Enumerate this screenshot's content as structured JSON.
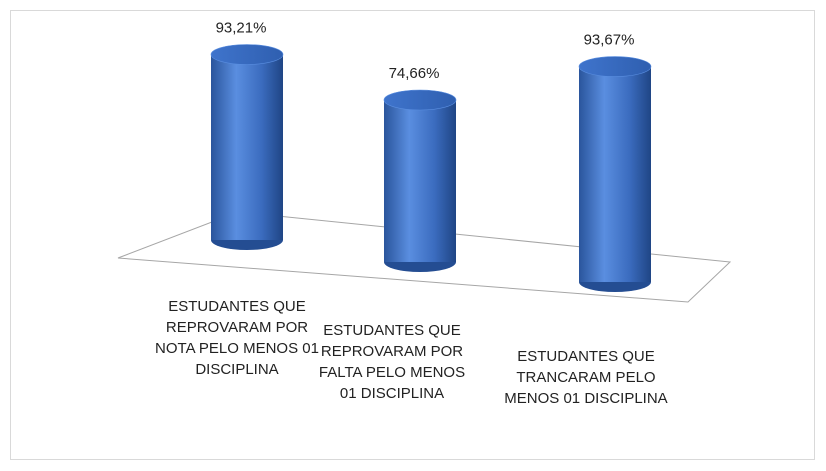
{
  "chart_data": {
    "type": "bar3d",
    "categories": [
      "ESTUDANTES QUE REPROVARAM POR NOTA PELO MENOS 01 DISCIPLINA",
      "ESTUDANTES QUE REPROVARAM POR FALTA PELO MENOS 01 DISCIPLINA",
      "ESTUDANTES QUE TRANCARAM PELO MENOS 01 DISCIPLINA"
    ],
    "values": [
      93.21,
      74.66,
      93.67
    ],
    "value_labels": [
      "93,21%",
      "74,66%",
      "93,67%"
    ],
    "color": "#3a6fc4"
  }
}
